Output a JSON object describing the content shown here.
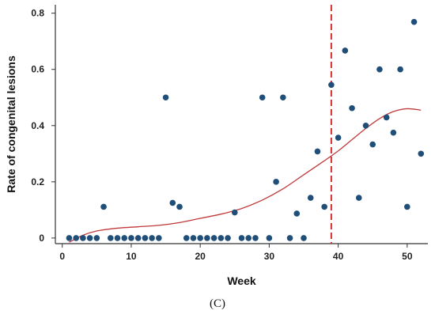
{
  "caption": "(C)",
  "chart_data": {
    "type": "scatter",
    "title": "",
    "xlabel": "Week",
    "ylabel": "Rate of congenital lesions",
    "xlim": [
      -1,
      53
    ],
    "ylim": [
      -0.02,
      0.83
    ],
    "x_ticks": [
      0,
      10,
      20,
      30,
      40,
      50
    ],
    "y_ticks": [
      0,
      0.2,
      0.4,
      0.6,
      0.8
    ],
    "y_tick_labels": [
      "0",
      "0.2",
      "0.4",
      "0.6",
      "0.8"
    ],
    "grid": false,
    "colors": {
      "points": "#1f4e79",
      "trend": "#c0393b",
      "vline": "#d32f2f",
      "axis": "#333333"
    },
    "series": [
      {
        "kind": "points",
        "x": [
          1,
          2,
          3,
          4,
          5,
          6,
          7,
          8,
          9,
          10,
          11,
          12,
          13,
          14,
          15,
          16,
          17,
          18,
          19,
          20,
          21,
          22,
          23,
          24,
          25,
          26,
          27,
          28,
          29,
          30,
          31,
          32,
          33,
          34,
          35,
          36,
          37,
          38,
          39,
          40,
          41,
          42,
          43,
          44,
          45,
          46,
          47,
          48,
          49,
          50,
          51,
          52
        ],
        "y": [
          0,
          0,
          0,
          0,
          0,
          0.111,
          0,
          0,
          0,
          0,
          0,
          0,
          0,
          0,
          0.5,
          0.125,
          0.111,
          0,
          0,
          0,
          0,
          0,
          0,
          0,
          0.091,
          0,
          0,
          0,
          0.5,
          0,
          0.2,
          0.5,
          0,
          0.087,
          0,
          0.143,
          0.308,
          0.111,
          0.545,
          0.357,
          0.667,
          0.462,
          0.143,
          0.4,
          0.333,
          0.6,
          0.429,
          0.375,
          0.6,
          0.111,
          0.769,
          0.3
        ]
      },
      {
        "kind": "trend",
        "x": [
          1,
          3,
          5,
          8,
          11,
          14,
          17,
          20,
          23,
          26,
          29,
          32,
          35,
          38,
          40,
          42,
          44,
          46,
          48,
          50,
          52
        ],
        "y": [
          -0.015,
          0.01,
          0.025,
          0.035,
          0.04,
          0.045,
          0.055,
          0.07,
          0.085,
          0.105,
          0.135,
          0.175,
          0.225,
          0.275,
          0.31,
          0.35,
          0.39,
          0.425,
          0.45,
          0.46,
          0.455
        ]
      }
    ],
    "vline_x": 39
  }
}
